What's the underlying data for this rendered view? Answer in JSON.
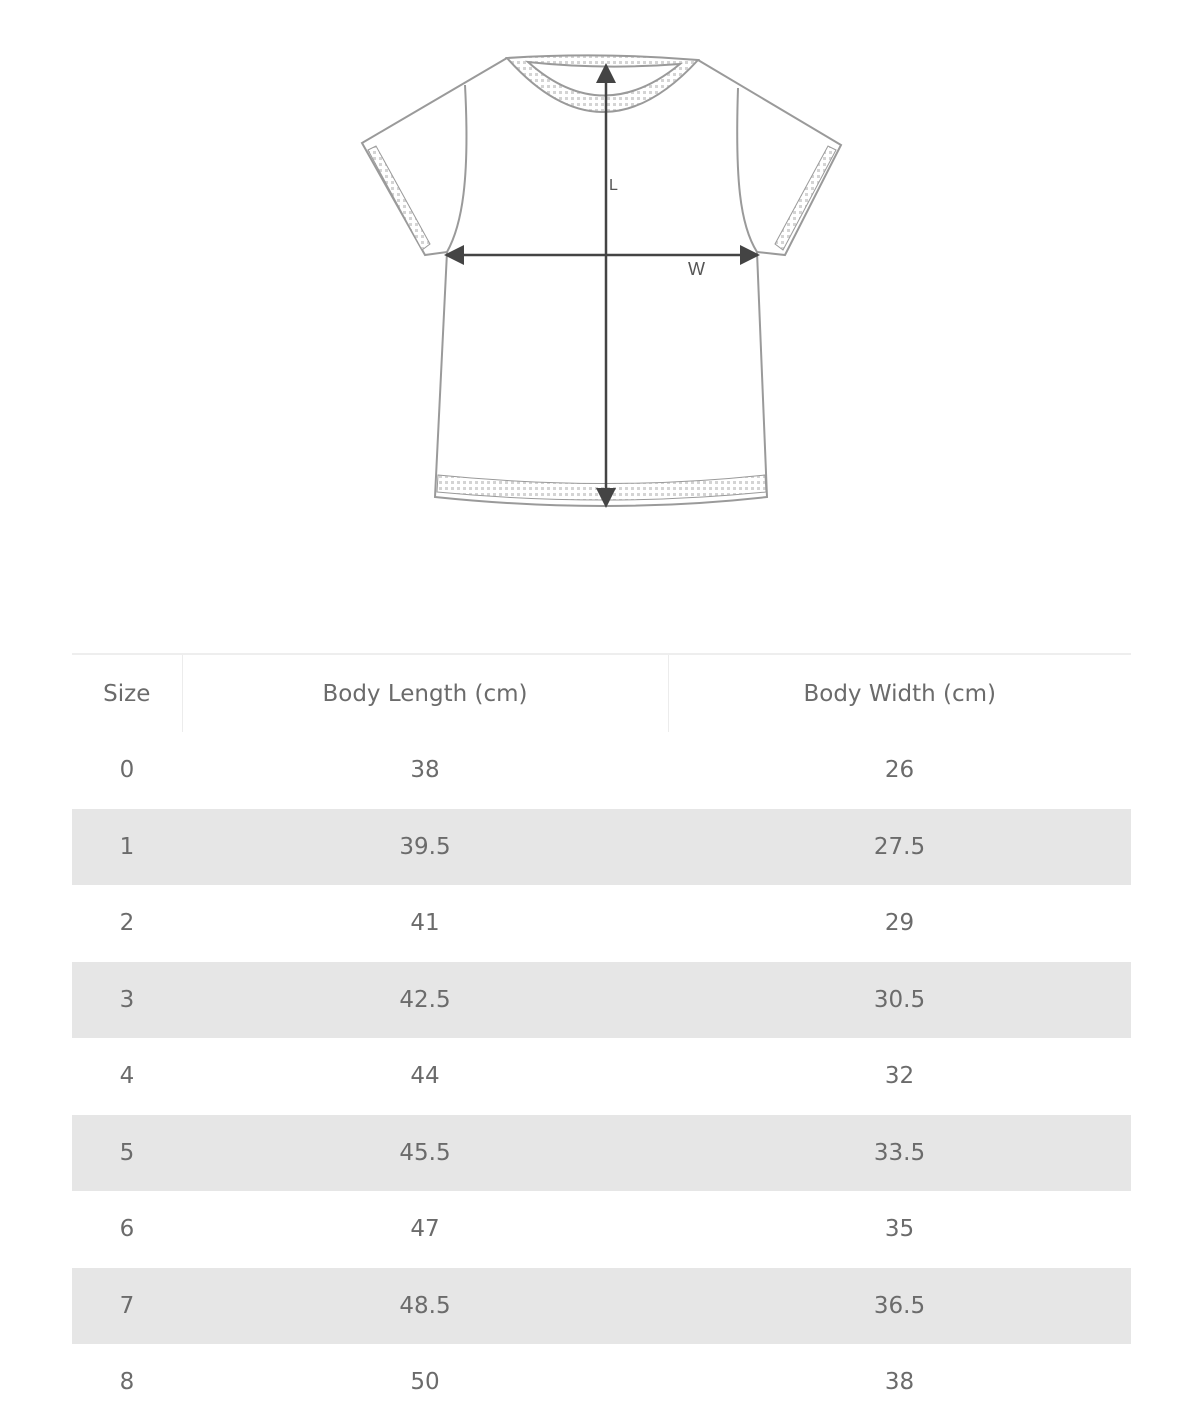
{
  "diagram": {
    "length_label": "L",
    "width_label": "W"
  },
  "table": {
    "headers": [
      "Size",
      "Body Length (cm)",
      "Body Width (cm)"
    ],
    "rows": [
      [
        "0",
        "38",
        "26"
      ],
      [
        "1",
        "39.5",
        "27.5"
      ],
      [
        "2",
        "41",
        "29"
      ],
      [
        "3",
        "42.5",
        "30.5"
      ],
      [
        "4",
        "44",
        "32"
      ],
      [
        "5",
        "45.5",
        "33.5"
      ],
      [
        "6",
        "47",
        "35"
      ],
      [
        "7",
        "48.5",
        "36.5"
      ],
      [
        "8",
        "50",
        "38"
      ]
    ],
    "stripe_color": "#e6e6e6"
  }
}
